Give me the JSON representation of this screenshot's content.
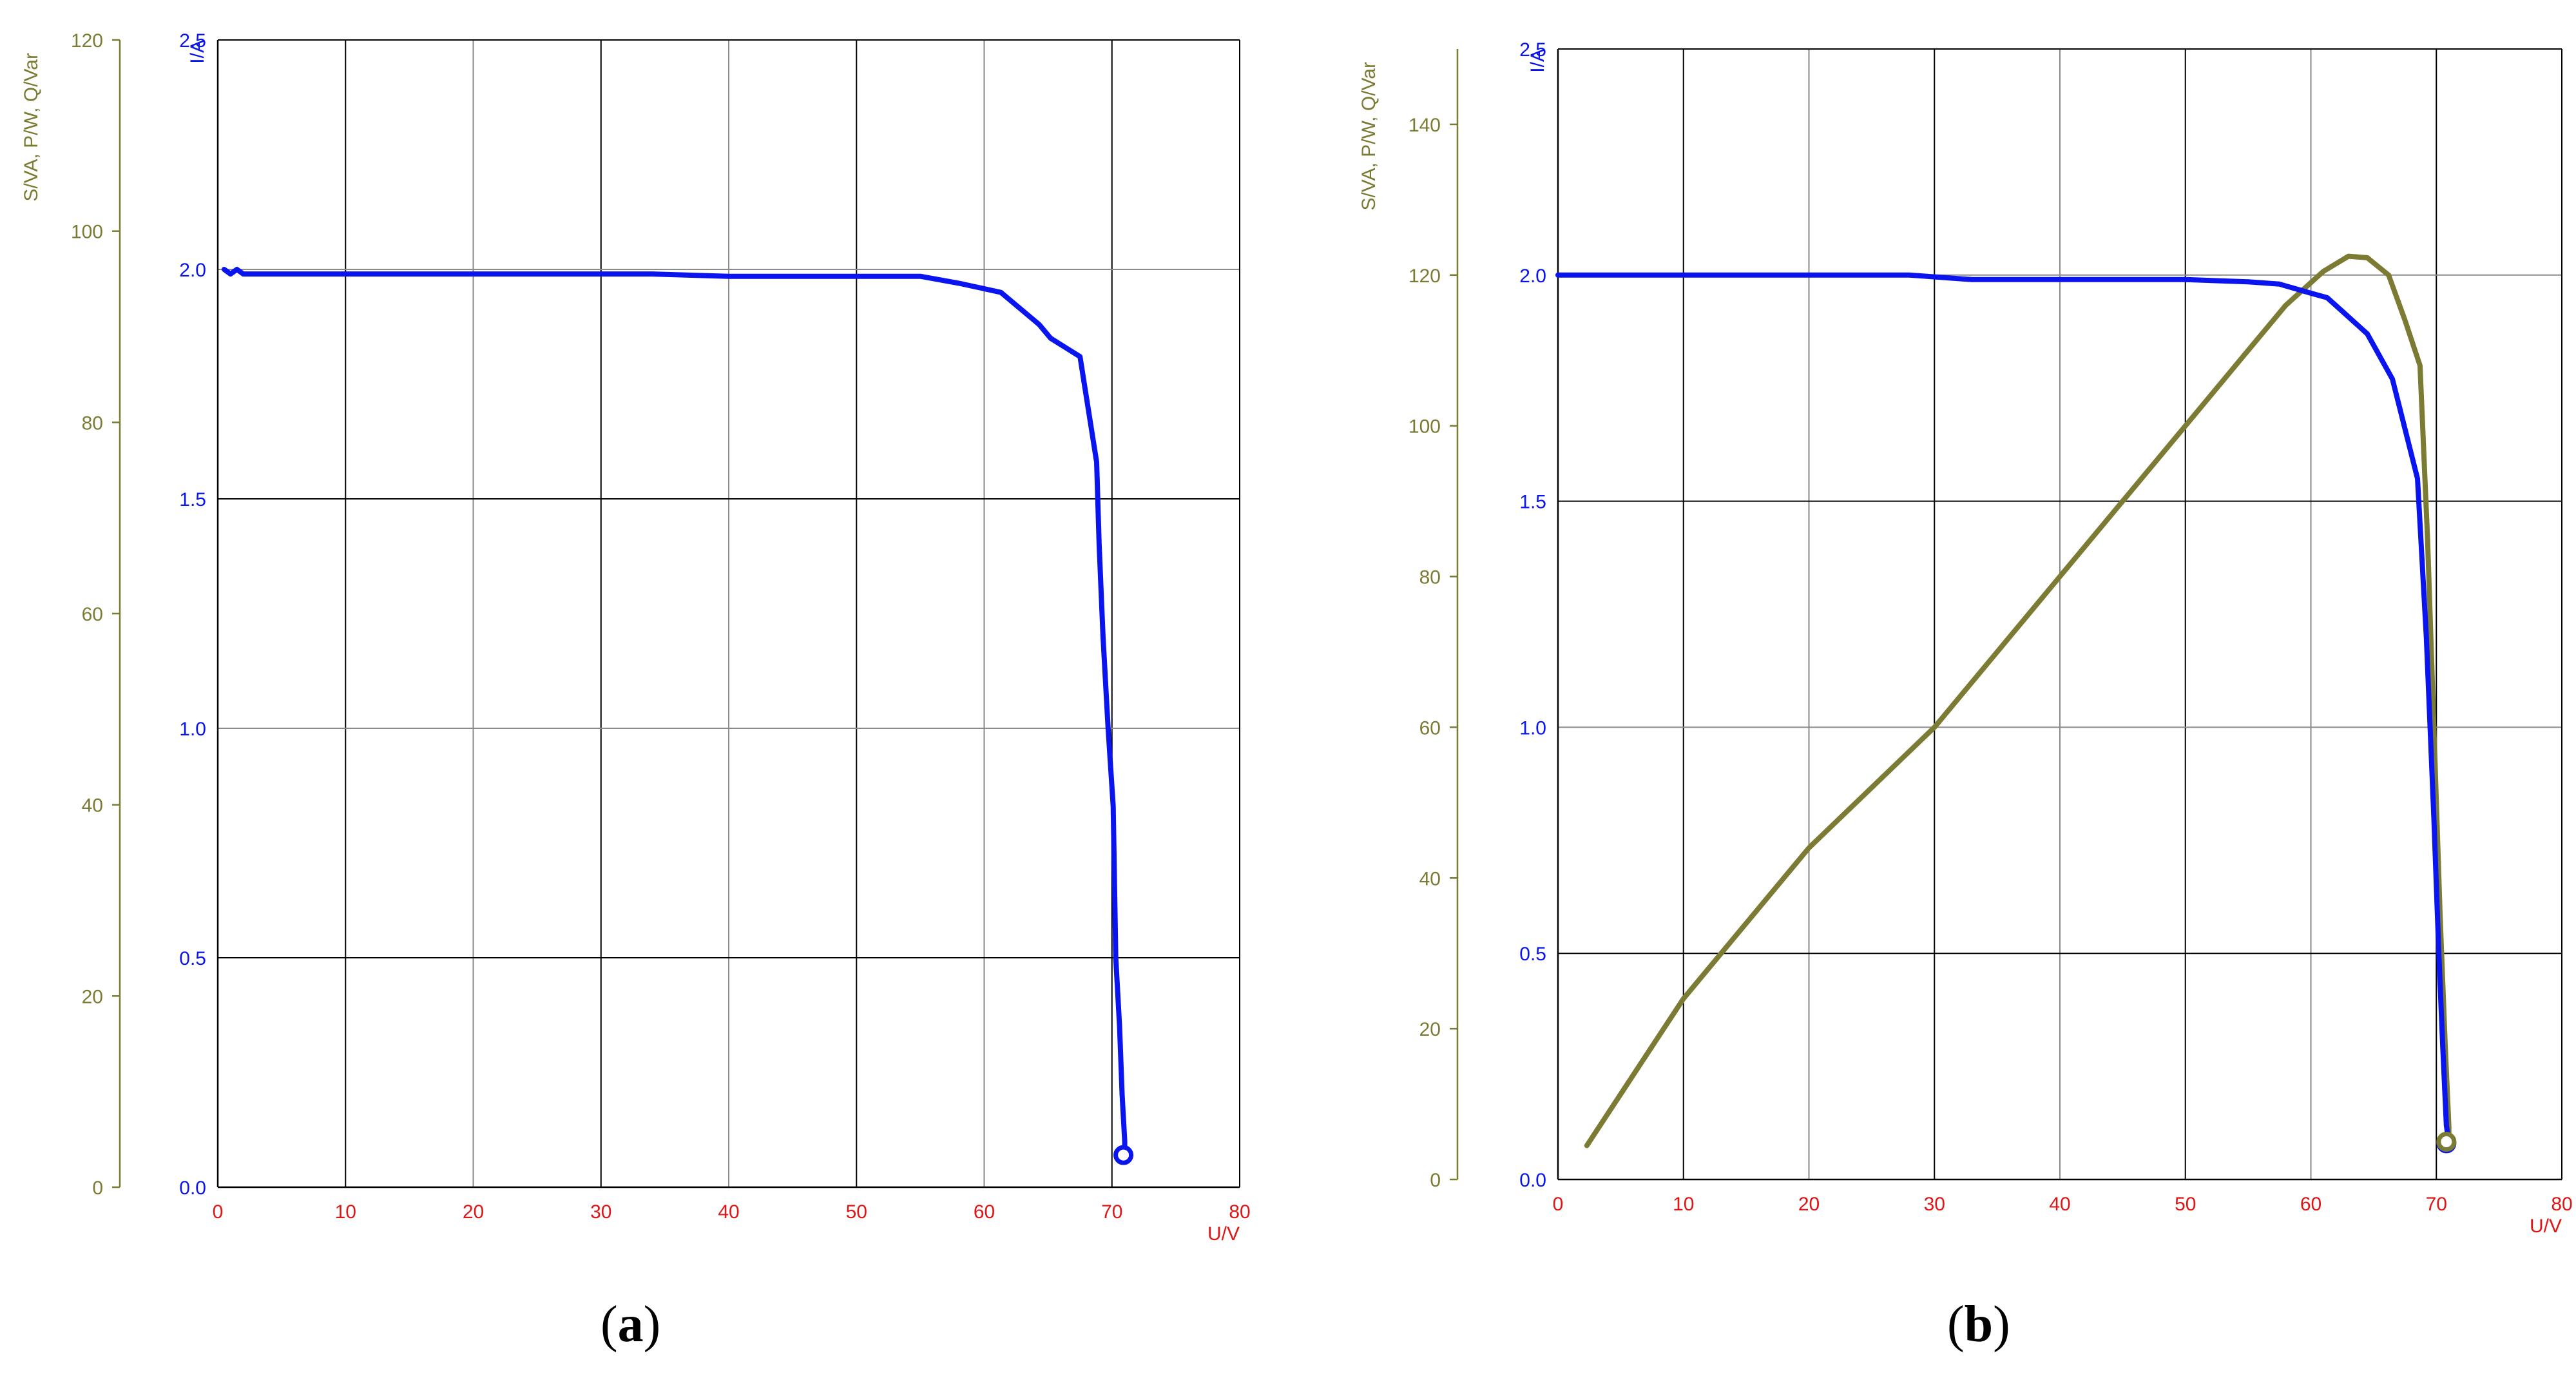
{
  "colors": {
    "current": "#0a14ee",
    "power": "#7b7b34",
    "voltage_axis": "#e01616",
    "grid": "#000000"
  },
  "panels": {
    "a": {
      "caption_open": "(",
      "caption_letter": "a",
      "caption_close": ")"
    },
    "b": {
      "caption_open": "(",
      "caption_letter": "b",
      "caption_close": ")"
    }
  },
  "chart_data": [
    {
      "type": "line",
      "panel": "a",
      "xlabel": "U/V",
      "ylabel_current": "I/A",
      "ylabel_power": "S/VA, P/W, Q/Var",
      "xlim": [
        0,
        80
      ],
      "ylim_current": [
        0,
        2.5
      ],
      "ylim_power": [
        0,
        120
      ],
      "x_ticks": [
        "0",
        "10",
        "20",
        "30",
        "40",
        "50",
        "60",
        "70",
        "80"
      ],
      "y_ticks_current": [
        "0.0",
        "0.5",
        "1.0",
        "1.5",
        "2.0",
        "2.5"
      ],
      "y_ticks_power": [
        "0",
        "20",
        "40",
        "60",
        "80",
        "100",
        "120"
      ],
      "series": [
        {
          "axis": "current",
          "x": [
            0.5,
            1.0,
            1.5,
            2,
            10,
            20,
            30,
            34,
            40,
            50,
            55,
            58,
            61.3,
            64.3,
            65.2,
            67.5,
            68.8,
            69.0,
            69.3,
            69.7,
            70.1,
            70.3,
            70.6,
            70.8,
            71.0,
            71.0
          ],
          "y": [
            2.0,
            1.99,
            2.0,
            1.99,
            1.99,
            1.99,
            1.99,
            1.99,
            1.985,
            1.985,
            1.985,
            1.97,
            1.95,
            1.88,
            1.85,
            1.81,
            1.58,
            1.4,
            1.2,
            1.0,
            0.83,
            0.5,
            0.35,
            0.2,
            0.1,
            0.08
          ]
        }
      ],
      "end_marker": {
        "x": 70.9,
        "y": 0.07
      }
    },
    {
      "type": "line",
      "panel": "b",
      "xlabel": "U/V",
      "ylabel_current": "I/A",
      "ylabel_power": "S/VA, P/W, Q/Var",
      "xlim": [
        0,
        80
      ],
      "ylim_current": [
        0,
        2.5
      ],
      "ylim_power": [
        0,
        150
      ],
      "x_ticks": [
        "0",
        "10",
        "20",
        "30",
        "40",
        "50",
        "60",
        "70",
        "80"
      ],
      "y_ticks_current": [
        "0.0",
        "0.5",
        "1.0",
        "1.5",
        "2.0",
        "2.5"
      ],
      "y_ticks_power": [
        "0",
        "20",
        "40",
        "60",
        "80",
        "100",
        "120",
        "140"
      ],
      "series": [
        {
          "axis": "current",
          "x": [
            0,
            10,
            20,
            28,
            33,
            40,
            50,
            55,
            57.5,
            60,
            61.3,
            62.5,
            64.5,
            66.5,
            68.5,
            69.2,
            69.8,
            70.2,
            70.5,
            70.8,
            71.0
          ],
          "y": [
            2.0,
            2.0,
            2.0,
            2.0,
            1.99,
            1.99,
            1.99,
            1.985,
            1.98,
            1.96,
            1.95,
            1.92,
            1.87,
            1.77,
            1.55,
            1.2,
            0.8,
            0.5,
            0.3,
            0.12,
            0.08
          ]
        },
        {
          "axis": "power",
          "x": [
            2.3,
            10,
            20,
            30,
            40,
            50,
            55,
            58,
            61,
            63,
            64.5,
            66.2,
            67.5,
            68.7,
            69.3,
            69.8,
            70.3,
            70.7,
            71.0,
            71.0
          ],
          "y": [
            4.5,
            24,
            44,
            60,
            80,
            100,
            110,
            116,
            120.5,
            122.5,
            122.3,
            120,
            114,
            108,
            85,
            60,
            35,
            18,
            7,
            5
          ]
        }
      ],
      "end_markers": [
        {
          "axis": "current",
          "x": 70.8,
          "y": 0.08
        },
        {
          "axis": "power",
          "x": 70.8,
          "y": 5
        }
      ]
    }
  ]
}
